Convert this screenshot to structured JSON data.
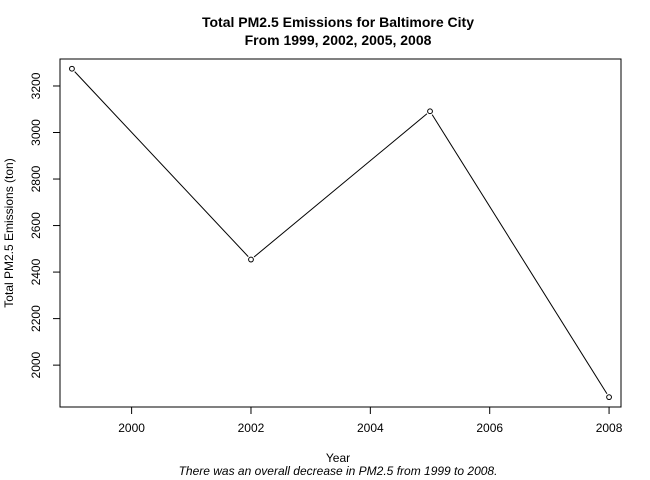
{
  "chart_data": {
    "type": "line",
    "title": "Total PM2.5 Emissions for Baltimore City",
    "subtitle": "From 1999, 2002, 2005, 2008",
    "xlabel": "Year",
    "ylabel": "Total PM2.5 Emissions (ton)",
    "caption": "There was an overall decrease in PM2.5 from 1999 to 2008.",
    "x": [
      1999,
      2002,
      2005,
      2008
    ],
    "y": [
      3274.2,
      2453.9,
      3091.4,
      1862.3
    ],
    "xlim": [
      1998.8,
      2008.2
    ],
    "ylim": [
      1820,
      3316
    ],
    "x_ticks": [
      2000,
      2002,
      2004,
      2006,
      2008
    ],
    "y_ticks": [
      2000,
      2200,
      2400,
      2600,
      2800,
      3000,
      3200
    ],
    "point_marker": "open-circle",
    "line_color": "#000000",
    "grid": false,
    "legend": "none"
  }
}
